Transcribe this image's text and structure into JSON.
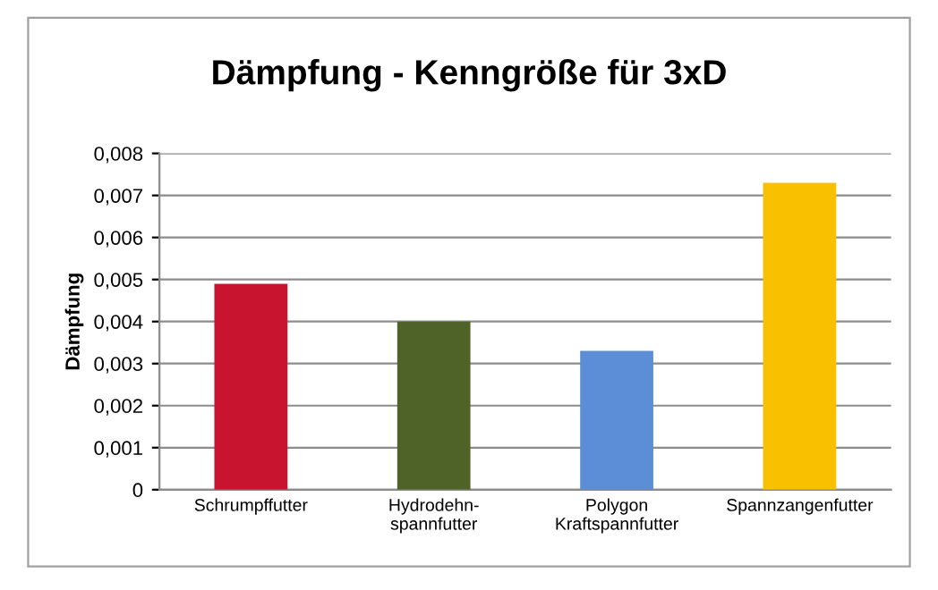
{
  "chart_data": {
    "type": "bar",
    "title": "Dämpfung - Kenngröße für 3xD",
    "ylabel": "Dämpfung",
    "categories": [
      "Schrumpffutter",
      "Hydrodehn-\nspannfutter",
      "Polygon\nKraftspannfutter",
      "Spannzangenfutter"
    ],
    "values": [
      0.0049,
      0.004,
      0.0033,
      0.0073
    ],
    "colors": [
      "#c8142f",
      "#4f6228",
      "#5b8ed6",
      "#f9c000"
    ],
    "ylim": [
      0,
      0.008
    ],
    "yticks": [
      {
        "value": 0,
        "label": "0"
      },
      {
        "value": 0.001,
        "label": "0,001"
      },
      {
        "value": 0.002,
        "label": "0,002"
      },
      {
        "value": 0.003,
        "label": "0,003"
      },
      {
        "value": 0.004,
        "label": "0,004"
      },
      {
        "value": 0.005,
        "label": "0,005"
      },
      {
        "value": 0.006,
        "label": "0,006"
      },
      {
        "value": 0.007,
        "label": "0,007"
      },
      {
        "value": 0.008,
        "label": "0,008"
      }
    ],
    "grid": "y"
  }
}
